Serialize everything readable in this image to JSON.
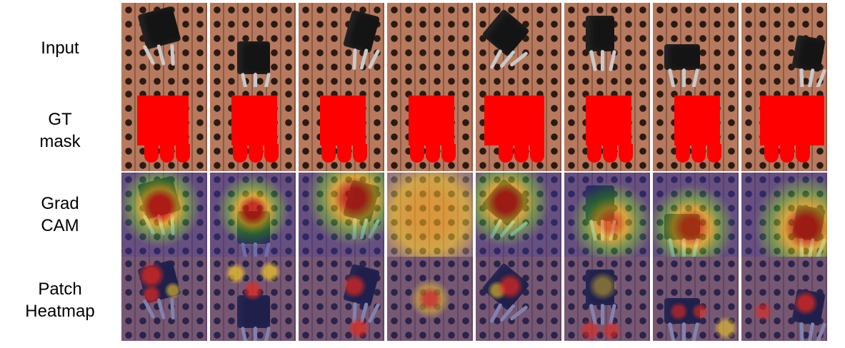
{
  "row_labels": {
    "input": "Input",
    "gt_mask": "GT\nmask",
    "grad_cam": "Grad\nCAM",
    "patch_heatmap": "Patch\nHeatmap"
  },
  "colors": {
    "board": "#b77a5e",
    "mask": "#ff0000",
    "heatmap_low": "#2b2f8f",
    "heatmap_high": "#e02020"
  }
}
